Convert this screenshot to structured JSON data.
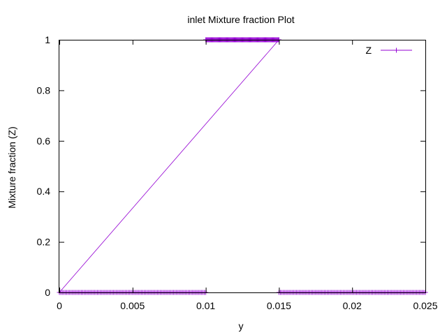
{
  "chart_data": {
    "type": "line",
    "title": "inlet Mixture fraction Plot",
    "xlabel": "y",
    "ylabel": "Mixture fraction (Z)",
    "xlim": [
      0,
      0.025
    ],
    "ylim": [
      0,
      1
    ],
    "x_ticks": [
      0,
      0.005,
      0.01,
      0.015,
      0.02,
      0.025
    ],
    "x_tick_labels": [
      "0",
      "0.005",
      "0.01",
      "0.015",
      "0.02",
      "0.025"
    ],
    "y_ticks": [
      0,
      0.2,
      0.4,
      0.6,
      0.8,
      1
    ],
    "y_tick_labels": [
      "0",
      "0.2",
      "0.4",
      "0.6",
      "0.8",
      "1"
    ],
    "grid": false,
    "legend_position": "top-right",
    "series": [
      {
        "name": "Z",
        "color": "#9400d3",
        "marker": "plus",
        "x": [
          0,
          0.015,
          0.01
        ],
        "y": [
          0,
          1,
          1
        ],
        "point_segments": [
          {
            "x_start": 0,
            "x_end": 0.01,
            "y": 0,
            "count": 101
          },
          {
            "x_start": 0.01,
            "x_end": 0.015,
            "y": 1,
            "count": 101
          },
          {
            "x_start": 0.015,
            "x_end": 0.025,
            "y": 0,
            "count": 101
          }
        ]
      }
    ]
  }
}
